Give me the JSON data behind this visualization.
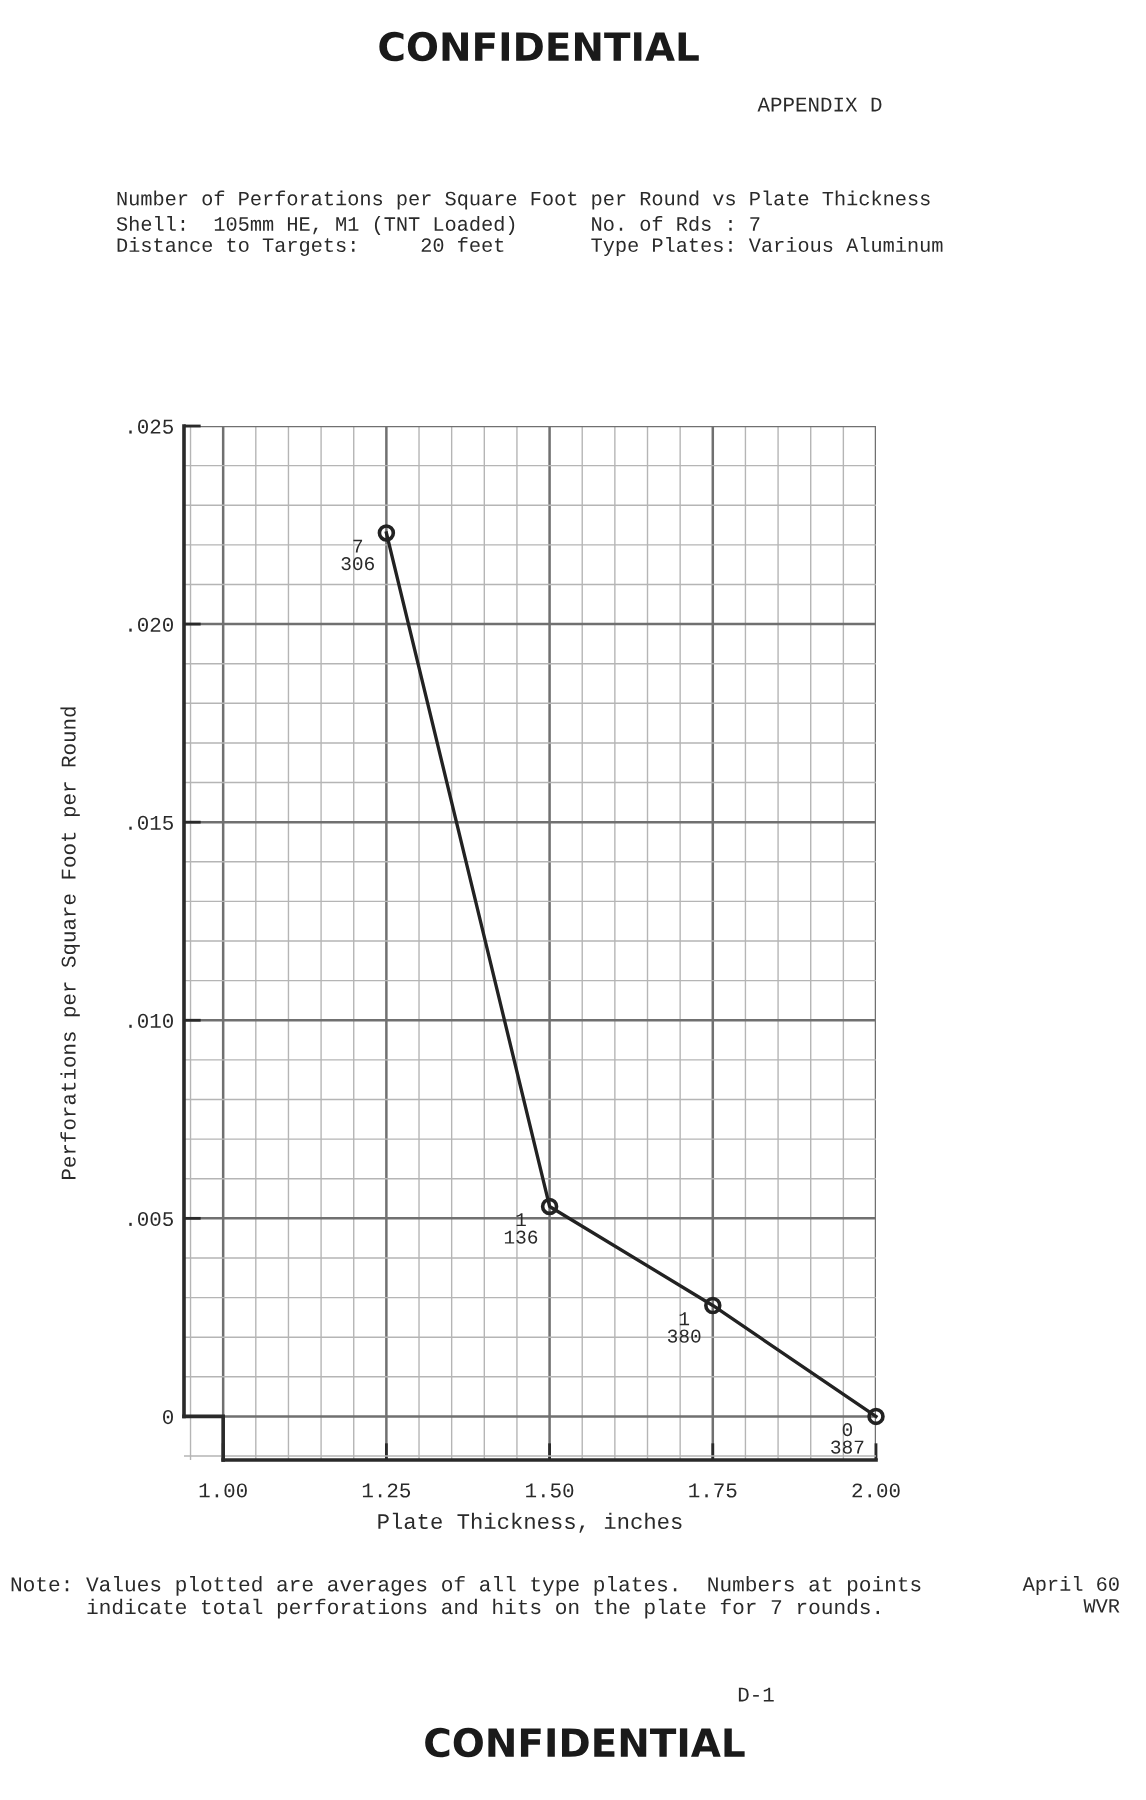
{
  "chart_data": {
    "type": "line",
    "title": "Number of Perforations per Square Foot per Round vs Plate Thickness",
    "subtitle": "Shell:  105mm HE, M1 (TNT Loaded)      No. of Rds : 7\nDistance to Targets:     20 feet       Type Plates: Various Aluminum",
    "xlabel": "Plate Thickness, inches",
    "ylabel": "Perforations per Square Foot per Round",
    "x": [
      1.25,
      1.5,
      1.75,
      2.0
    ],
    "series": [
      {
        "color": "#222222",
        "values": [
          0.0223,
          0.0053,
          0.0028,
          0.0
        ]
      }
    ],
    "xlim": [
      0.94,
      2.0
    ],
    "ylim": [
      -0.0011,
      0.025
    ],
    "xticks": [
      {
        "value": 1.0,
        "label": "1.00"
      },
      1.25,
      {
        "value": 1.5,
        "label": "1.50"
      },
      1.75,
      {
        "value": 2.0,
        "label": "2.00"
      }
    ],
    "yticks": [
      0,
      {
        "value": 0.005,
        "label": ".005"
      },
      {
        "value": 0.01,
        "label": ".010"
      },
      {
        "value": 0.015,
        "label": ".015"
      },
      {
        "value": 0.02,
        "label": ".020"
      },
      {
        "value": 0.025,
        "label": ".025"
      }
    ],
    "grid": true,
    "marker": "circle",
    "line_style": "solid",
    "annotations": [
      {
        "text": "7\n306",
        "x": 1.25,
        "y": 0.0223
      },
      {
        "text": "1\n136",
        "x": 1.5,
        "y": 0.0053
      },
      {
        "text": "1\n380",
        "x": 1.75,
        "y": 0.0028
      },
      {
        "text": "0\n387",
        "x": 2.0,
        "y": 0.0
      },
      "CONFIDENTIAL",
      "APPENDIX D",
      "Note: Values plotted are averages of all type plates.  Numbers at points\n      indicate total perforations and hits on the plate for 7 rounds.",
      "April 60\nWVR",
      "D-1",
      "CONFIDENTIAL"
    ]
  }
}
